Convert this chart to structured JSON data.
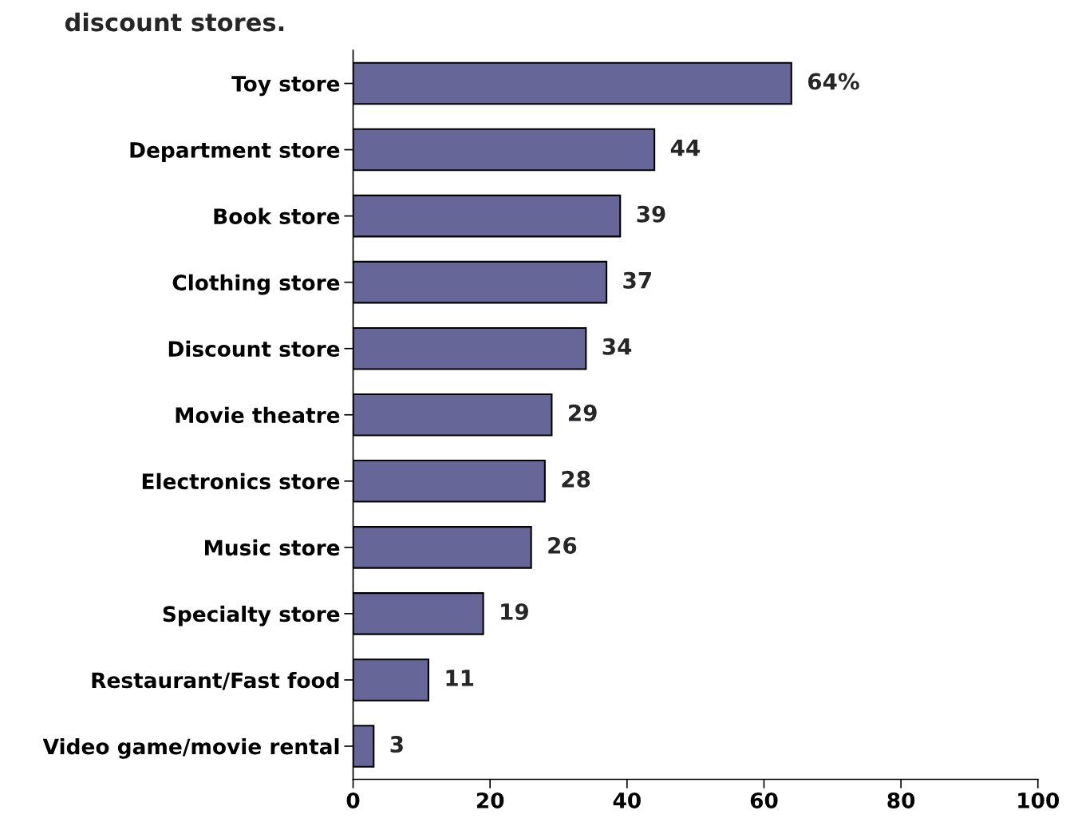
{
  "chart_data": {
    "type": "bar",
    "orientation": "horizontal",
    "title": "discount stores.",
    "categories": [
      "Toy store",
      "Department store",
      "Book store",
      "Clothing store",
      "Discount store",
      "Movie theatre",
      "Electronics store",
      "Music store",
      "Specialty store",
      "Restaurant/Fast food",
      "Video game/movie rental"
    ],
    "values": [
      64,
      44,
      39,
      37,
      34,
      29,
      28,
      26,
      19,
      11,
      3
    ],
    "value_labels": [
      "64%",
      "44",
      "39",
      "37",
      "34",
      "29",
      "28",
      "26",
      "19",
      "11",
      "3"
    ],
    "color": "#666699",
    "xlim": [
      0,
      100
    ],
    "xticks": [
      0,
      20,
      40,
      60,
      80,
      100
    ],
    "grid": false
  }
}
